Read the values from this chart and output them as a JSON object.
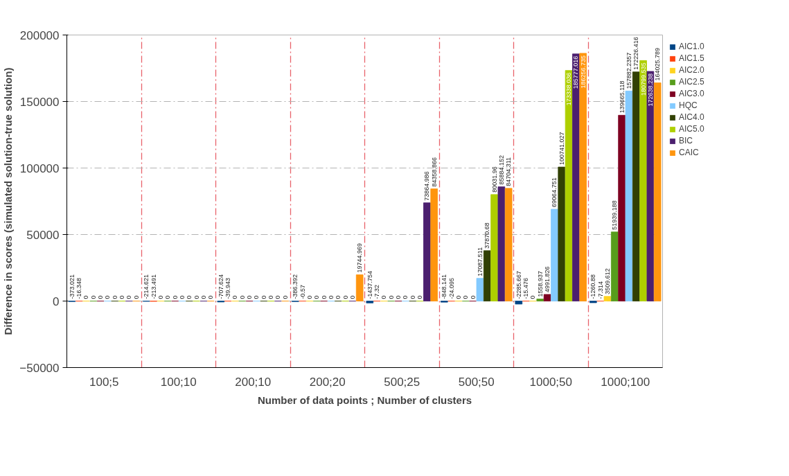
{
  "chart_data": {
    "type": "bar",
    "xlabel": "Number of data points ; Number of clusters",
    "ylabel": "Difference in scores (simulated solution-true solution)",
    "categories": [
      "100;5",
      "100;10",
      "200;10",
      "200;20",
      "500;25",
      "500;50",
      "1000;50",
      "1000;100"
    ],
    "series": [
      {
        "name": "AIC1.0",
        "color": "#004586",
        "values": [
          -373.021,
          -214.621,
          -707.624,
          -386.392,
          -1437.754,
          -848.141,
          -2285.667,
          -1260.88
        ]
      },
      {
        "name": "AIC1.5",
        "color": "#ff420e",
        "values": [
          -16.348,
          -213.491,
          -39.943,
          -0.57,
          -7.32,
          -24.095,
          -15.476,
          -7.314
        ]
      },
      {
        "name": "AIC2.0",
        "color": "#ffd320",
        "values": [
          0,
          0,
          0,
          0,
          0,
          0,
          0,
          3509.612
        ]
      },
      {
        "name": "AIC2.5",
        "color": "#579d1c",
        "values": [
          0,
          0,
          0,
          0,
          0,
          0,
          1558.937,
          51939.188
        ]
      },
      {
        "name": "AIC3.0",
        "color": "#7e0021",
        "values": [
          0,
          0,
          0,
          0,
          0,
          0,
          4991.826,
          139665.118
        ]
      },
      {
        "name": "HQC",
        "color": "#83caff",
        "values": [
          0,
          0,
          0,
          0,
          0,
          17087.511,
          69064.751,
          157882.2357
        ]
      },
      {
        "name": "AIC4.0",
        "color": "#314004",
        "values": [
          0,
          0,
          0,
          0,
          0,
          37870.68,
          100741.027,
          172226.416
        ]
      },
      {
        "name": "AIC5.0",
        "color": "#aecf00",
        "values": [
          0,
          0,
          0,
          0,
          0,
          80031.96,
          173338.036,
          180799.535
        ]
      },
      {
        "name": "BIC",
        "color": "#4b1f6f",
        "values": [
          0,
          0,
          0,
          0,
          73864.986,
          85884.152,
          185777.016,
          172638.238
        ]
      },
      {
        "name": "CAIC",
        "color": "#ff950e",
        "values": [
          0,
          0,
          0,
          19744.969,
          84358.866,
          84704.311,
          186256.735,
          164025.789
        ]
      }
    ],
    "ylim": [
      -50000,
      200000
    ],
    "yticks": [
      -50000,
      0,
      50000,
      100000,
      150000,
      200000
    ],
    "grid": true,
    "legend": "right",
    "data_labels": true
  }
}
